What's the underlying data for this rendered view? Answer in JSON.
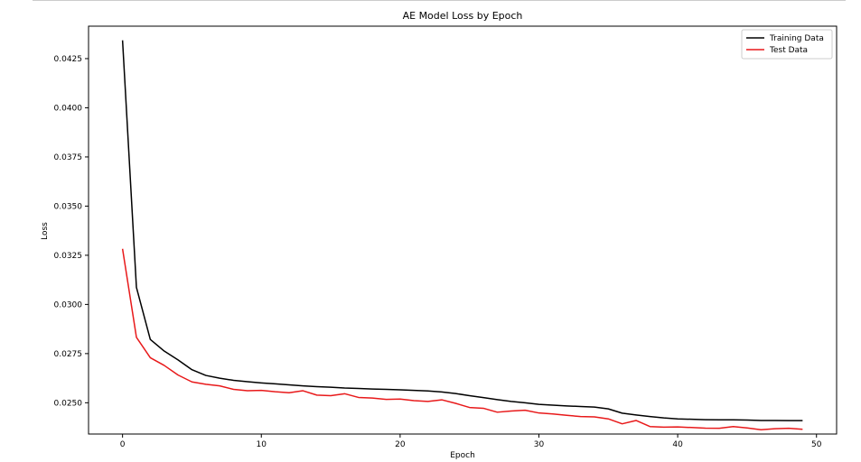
{
  "chart_data": {
    "type": "line",
    "title": "AE Model Loss by Epoch",
    "xlabel": "Epoch",
    "ylabel": "Loss",
    "xlim": [
      -2.45,
      51.45
    ],
    "ylim": [
      0.02341,
      0.04415
    ],
    "xticks": [
      0,
      10,
      20,
      30,
      40,
      50
    ],
    "xtick_labels": [
      "0",
      "10",
      "20",
      "30",
      "40",
      "50"
    ],
    "yticks": [
      0.025,
      0.0275,
      0.03,
      0.0325,
      0.035,
      0.0375,
      0.04,
      0.0425
    ],
    "ytick_labels": [
      "0.0250",
      "0.0275",
      "0.0300",
      "0.0325",
      "0.0350",
      "0.0375",
      "0.0400",
      "0.0425"
    ],
    "grid": false,
    "legend_position": "top-right",
    "x": [
      0,
      1,
      2,
      3,
      4,
      5,
      6,
      7,
      8,
      9,
      10,
      11,
      12,
      13,
      14,
      15,
      16,
      17,
      18,
      19,
      20,
      21,
      22,
      23,
      24,
      25,
      26,
      27,
      28,
      29,
      30,
      31,
      32,
      33,
      34,
      35,
      36,
      37,
      38,
      39,
      40,
      41,
      42,
      43,
      44,
      45,
      46,
      47,
      48,
      49
    ],
    "series": [
      {
        "name": "Training Data",
        "color": "#000000",
        "values": [
          0.04343,
          0.03087,
          0.02822,
          0.02763,
          0.02718,
          0.02668,
          0.02639,
          0.02625,
          0.02614,
          0.02607,
          0.02601,
          0.02596,
          0.02591,
          0.02586,
          0.02582,
          0.02579,
          0.02575,
          0.02573,
          0.0257,
          0.02568,
          0.02566,
          0.02563,
          0.0256,
          0.02555,
          0.02547,
          0.02536,
          0.02526,
          0.02516,
          0.02507,
          0.025,
          0.02492,
          0.02488,
          0.02484,
          0.02481,
          0.02478,
          0.02469,
          0.02447,
          0.02438,
          0.0243,
          0.02423,
          0.02418,
          0.02416,
          0.02414,
          0.02413,
          0.02413,
          0.02412,
          0.0241,
          0.0241,
          0.02409,
          0.02409
        ]
      },
      {
        "name": "Test Data",
        "color": "#e8191a",
        "values": [
          0.03283,
          0.02833,
          0.02729,
          0.0269,
          0.02641,
          0.02606,
          0.02594,
          0.02586,
          0.02568,
          0.02561,
          0.02563,
          0.02556,
          0.02551,
          0.02561,
          0.02539,
          0.02536,
          0.02546,
          0.02527,
          0.02524,
          0.02517,
          0.02519,
          0.02511,
          0.02507,
          0.02515,
          0.02497,
          0.02476,
          0.02472,
          0.02452,
          0.02458,
          0.02462,
          0.02448,
          0.02443,
          0.02436,
          0.0243,
          0.02428,
          0.02418,
          0.02393,
          0.0241,
          0.02379,
          0.02376,
          0.02377,
          0.02374,
          0.02371,
          0.0237,
          0.02379,
          0.02372,
          0.02363,
          0.02368,
          0.0237,
          0.02365
        ]
      }
    ]
  }
}
